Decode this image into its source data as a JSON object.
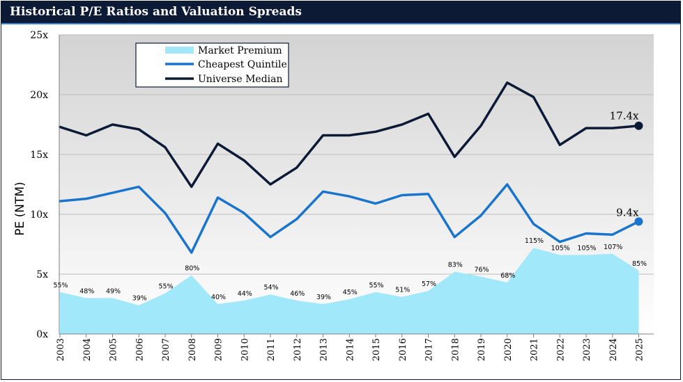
{
  "header": {
    "title": "Historical P/E Ratios and Valuation Spreads"
  },
  "colors": {
    "header_bg": "#0c1a36",
    "header_accent": "#2f7fcf",
    "market_premium": "#a2e8fb",
    "cheapest_quintile": "#1a74cc",
    "universe_median": "#0c1a36"
  },
  "chart_data": {
    "type": "line",
    "title": "Historical P/E Ratios and Valuation Spreads",
    "xlabel": "",
    "ylabel": "PE (NTM)",
    "ylim": [
      0,
      25
    ],
    "yticks": [
      0,
      5,
      10,
      15,
      20,
      25
    ],
    "ytick_labels": [
      "0x",
      "5x",
      "10x",
      "15x",
      "20x",
      "25x"
    ],
    "grid": true,
    "legend_position": "top-left",
    "categories": [
      "2003",
      "2004",
      "2005",
      "2006",
      "2007",
      "2008",
      "2009",
      "2010",
      "2011",
      "2012",
      "2013",
      "2014",
      "2015",
      "2016",
      "2017",
      "2018",
      "2019",
      "2020",
      "2021",
      "2022",
      "2023",
      "2024",
      "2025"
    ],
    "series": [
      {
        "name": "Market Premium",
        "kind": "area",
        "values": [
          3.5,
          3.0,
          3.0,
          2.4,
          3.4,
          4.9,
          2.5,
          2.8,
          3.3,
          2.8,
          2.5,
          2.9,
          3.5,
          3.1,
          3.6,
          5.2,
          4.8,
          4.3,
          7.2,
          6.6,
          6.6,
          6.7,
          5.3
        ],
        "labels": [
          "55%",
          "48%",
          "49%",
          "39%",
          "55%",
          "80%",
          "40%",
          "44%",
          "54%",
          "46%",
          "39%",
          "45%",
          "55%",
          "51%",
          "57%",
          "83%",
          "76%",
          "68%",
          "115%",
          "105%",
          "105%",
          "107%",
          "85%"
        ]
      },
      {
        "name": "Cheapest Quintile",
        "kind": "line",
        "values": [
          11.1,
          11.3,
          11.8,
          12.3,
          10.1,
          6.8,
          11.4,
          10.1,
          8.1,
          9.6,
          11.9,
          11.5,
          10.9,
          11.6,
          11.7,
          8.1,
          9.9,
          12.5,
          9.2,
          7.7,
          8.4,
          8.3,
          9.4
        ],
        "end_label": "9.4x"
      },
      {
        "name": "Universe Median",
        "kind": "line",
        "values": [
          17.3,
          16.6,
          17.5,
          17.1,
          15.6,
          12.3,
          15.9,
          14.5,
          12.5,
          13.9,
          16.6,
          16.6,
          16.9,
          17.5,
          18.4,
          14.8,
          17.4,
          21.0,
          19.8,
          15.8,
          17.2,
          17.2,
          17.4
        ],
        "end_label": "17.4x"
      }
    ]
  }
}
